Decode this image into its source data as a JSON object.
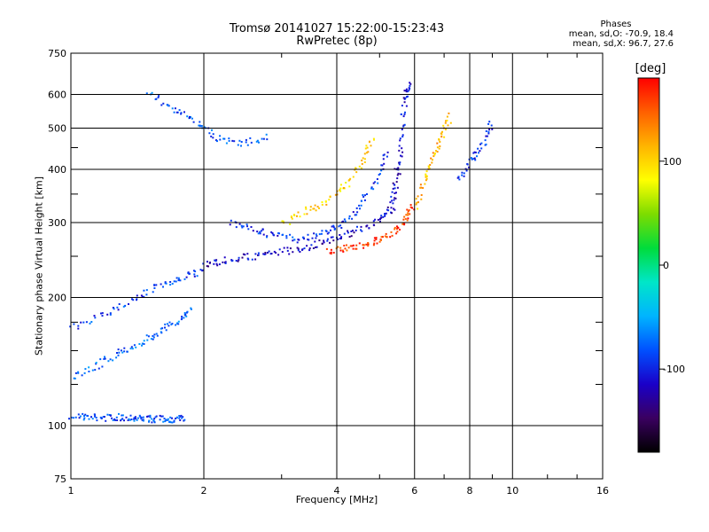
{
  "header": {
    "title_line1": "Tromsø 20141027 15:22:00-15:23:43",
    "title_line2": "RwPretec (8p)"
  },
  "stats": {
    "heading": "Phases",
    "line_o": "mean, sd,O: -70.9, 18.4",
    "line_x": "mean, sd,X:  96.7, 27.6"
  },
  "colorbar": {
    "unit": "[deg]",
    "ticks": [
      "100",
      "0",
      "-100"
    ],
    "tick_values": [
      100,
      0,
      -100
    ],
    "range": [
      -180,
      180
    ],
    "colormap": [
      "#000000",
      "#3a0060",
      "#1a00c8",
      "#0050ff",
      "#00b4ff",
      "#00e6c8",
      "#00dc3c",
      "#7ddc00",
      "#ffff00",
      "#ffb400",
      "#ff6000",
      "#ff0000"
    ]
  },
  "chart_data": {
    "type": "scatter",
    "title": "Tromsø 20141027 15:22:00-15:23:43",
    "subtitle": "RwPretec (8p)",
    "xlabel": "Frequency [MHz]",
    "ylabel": "Stationary phase Virtual Height [km]",
    "xscale": "log",
    "yscale": "log",
    "xlim": [
      1,
      16
    ],
    "ylim": [
      75,
      750
    ],
    "x_ticks": [
      1,
      2,
      4,
      6,
      8,
      10,
      16
    ],
    "x_tick_labels": [
      "1",
      "2",
      "4",
      "6",
      "8",
      "10",
      "16"
    ],
    "y_ticks": [
      75,
      100,
      200,
      300,
      400,
      500,
      600,
      750
    ],
    "y_tick_labels": [
      "75",
      "100",
      "200",
      "300",
      "400",
      "500",
      "600",
      "750"
    ],
    "grid": true,
    "color_encoding": "phase [deg]",
    "traces": [
      {
        "x": [
          1.0,
          1.1,
          1.2,
          1.3,
          1.4,
          1.5,
          1.6,
          1.7,
          1.8
        ],
        "y": [
          106,
          105,
          105,
          105,
          105,
          104,
          104,
          104,
          104
        ],
        "phase": -85
      },
      {
        "x": [
          1.0,
          1.15,
          1.3,
          1.45,
          1.6,
          1.75,
          1.85
        ],
        "y": [
          130,
          140,
          150,
          158,
          168,
          178,
          190
        ],
        "phase": -75
      },
      {
        "x": [
          1.0,
          1.2,
          1.4,
          1.6,
          1.8,
          2.0
        ],
        "y": [
          170,
          185,
          200,
          215,
          225,
          232
        ],
        "phase": -90
      },
      {
        "x": [
          1.5,
          1.7,
          1.9,
          2.1,
          2.4,
          2.8
        ],
        "y": [
          600,
          560,
          520,
          480,
          460,
          480
        ],
        "phase": -80
      },
      {
        "x": [
          2.0,
          2.2,
          2.5,
          2.8,
          3.2,
          3.6,
          4.0,
          4.5,
          5.0,
          5.3,
          5.5
        ],
        "y": [
          240,
          245,
          250,
          255,
          260,
          268,
          278,
          290,
          305,
          330,
          420
        ],
        "phase": -115
      },
      {
        "x": [
          2.3,
          2.6,
          2.9,
          3.3,
          3.7,
          4.1,
          4.5,
          4.9,
          5.2
        ],
        "y": [
          300,
          290,
          280,
          275,
          285,
          300,
          330,
          380,
          450
        ],
        "phase": -95
      },
      {
        "x": [
          3.8,
          4.2,
          4.6,
          5.0,
          5.4,
          5.7,
          5.9
        ],
        "y": [
          258,
          262,
          268,
          276,
          288,
          305,
          330
        ],
        "phase": 160
      },
      {
        "x": [
          3.0,
          3.4,
          3.8,
          4.2,
          4.6,
          4.8
        ],
        "y": [
          300,
          320,
          340,
          370,
          420,
          480
        ],
        "phase": 100
      },
      {
        "x": [
          5.3,
          5.5,
          5.6,
          5.7,
          5.8
        ],
        "y": [
          320,
          400,
          500,
          600,
          640
        ],
        "phase": -110
      },
      {
        "x": [
          6.0,
          6.3,
          6.6,
          6.9,
          7.2
        ],
        "y": [
          330,
          380,
          430,
          480,
          540
        ],
        "phase": 115
      },
      {
        "x": [
          7.5,
          8.0,
          8.5,
          9.0
        ],
        "y": [
          380,
          420,
          460,
          520
        ],
        "phase": -95
      }
    ]
  }
}
